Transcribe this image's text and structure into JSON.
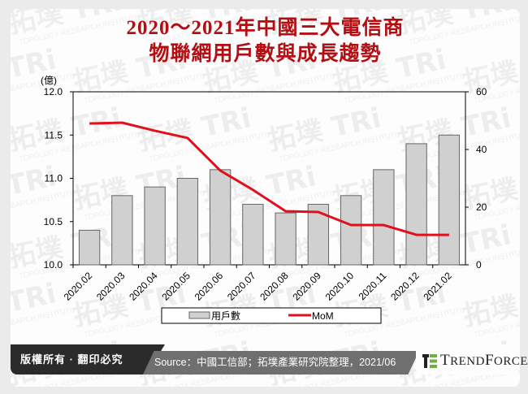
{
  "title": {
    "line1": "2020～2021年中國三大電信商",
    "line2": "物聯網用戶數與成長趨勢"
  },
  "colors": {
    "title": "#b40d12",
    "bar_fill": "#d0d0d0",
    "bar_stroke": "#666666",
    "line": "#e0101e",
    "footer_dark": "#2b2b2b",
    "footer_gray": "#6f6f6f",
    "brand_green": "#6bb33a"
  },
  "chart_data": {
    "type": "bar+line",
    "title": "2020～2021年中國三大電信商物聯網用戶數與成長趨勢",
    "categories": [
      "2020.02",
      "2020.03",
      "2020.04",
      "2020.05",
      "2020.06",
      "2020.07",
      "2020.08",
      "2020.09",
      "2020.10",
      "2020.11",
      "2020.12",
      "2021.02"
    ],
    "series": [
      {
        "name": "用戶數",
        "type": "bar",
        "axis": "left",
        "values": [
          10.4,
          10.8,
          10.9,
          11.0,
          11.1,
          10.7,
          10.6,
          10.7,
          10.8,
          11.1,
          11.4,
          11.5
        ]
      },
      {
        "name": "MoM",
        "type": "line",
        "axis": "right",
        "values": [
          49,
          49.3,
          46.5,
          44,
          32.7,
          26,
          18.6,
          18.3,
          13.8,
          13.8,
          10.4,
          10.4
        ]
      }
    ],
    "left_axis": {
      "unit": "(億)",
      "ylim": [
        10.0,
        12.0
      ],
      "ticks": [
        "10.0",
        "10.5",
        "11.0",
        "11.5",
        "12.0"
      ]
    },
    "right_axis": {
      "ylim": [
        0,
        60
      ],
      "ticks": [
        "0",
        "20",
        "40",
        "60"
      ]
    },
    "xlabel": "",
    "grid": false,
    "legend": {
      "position": "bottom",
      "entries": [
        "用戶數",
        "MoM"
      ]
    }
  },
  "footer": {
    "copyright": "版權所有 · 翻印必究",
    "source": "Source：中國工信部；拓墣產業研究院整理，2021/06",
    "brand": "TrendForce"
  },
  "watermark": {
    "text_cn": "拓墣",
    "text_en": "TRi",
    "subtext": "TOPOLOGY RESEARCH INSTITUTE"
  }
}
